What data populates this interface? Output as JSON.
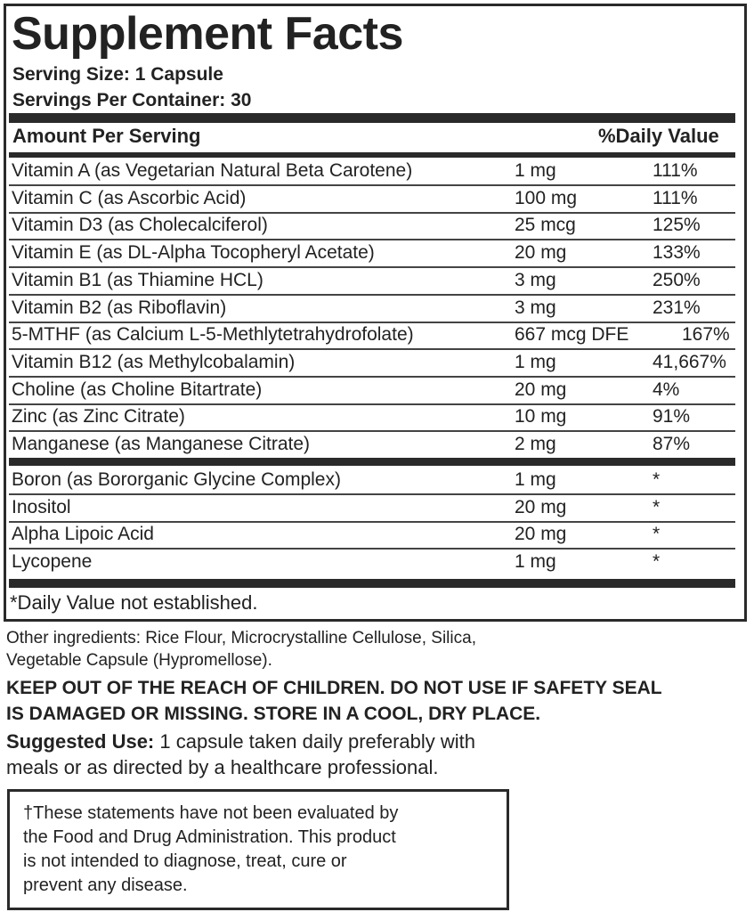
{
  "title": "Supplement Facts",
  "serving_size": "Serving Size: 1 Capsule",
  "servings_per_container": "Servings Per Container: 30",
  "header": {
    "amount": "Amount Per Serving",
    "dv": "%Daily Value"
  },
  "rows": [
    {
      "name": "Vitamin A (as Vegetarian Natural Beta Carotene)",
      "amount": "1 mg",
      "dv": "111%"
    },
    {
      "name": "Vitamin C (as Ascorbic Acid)",
      "amount": "100 mg",
      "dv": "111%"
    },
    {
      "name": "Vitamin D3 (as Cholecalciferol)",
      "amount": "25 mcg",
      "dv": "125%"
    },
    {
      "name": "Vitamin E (as DL-Alpha Tocopheryl Acetate)",
      "amount": "20 mg",
      "dv": "133%"
    },
    {
      "name": "Vitamin B1 (as Thiamine HCL)",
      "amount": "3 mg",
      "dv": "250%"
    },
    {
      "name": "Vitamin B2 (as Riboflavin)",
      "amount": "3 mg",
      "dv": "231%"
    },
    {
      "name": "5-MTHF (as Calcium L-5-Methlytetrahydrofolate)",
      "amount": "667 mcg DFE",
      "dv": "167%"
    },
    {
      "name": "Vitamin B12 (as Methylcobalamin)",
      "amount": "1 mg",
      "dv": "41,667%"
    },
    {
      "name": "Choline (as Choline Bitartrate)",
      "amount": "20 mg",
      "dv": "4%"
    },
    {
      "name": "Zinc (as Zinc Citrate)",
      "amount": "10 mg",
      "dv": "91%"
    },
    {
      "name": "Manganese (as Manganese Citrate)",
      "amount": "2 mg",
      "dv": "87%"
    }
  ],
  "rows2": [
    {
      "name": "Boron (as Bororganic Glycine Complex)",
      "amount": "1 mg",
      "dv": "*"
    },
    {
      "name": "Inositol",
      "amount": "20 mg",
      "dv": "*"
    },
    {
      "name": "Alpha Lipoic Acid",
      "amount": "20 mg",
      "dv": "*"
    },
    {
      "name": "Lycopene",
      "amount": "1 mg",
      "dv": "*"
    }
  ],
  "footnote": "*Daily Value not established.",
  "other_ingredients": [
    "Other ingredients: Rice Flour, Microcrystalline Cellulose, Silica,",
    "Vegetable Capsule (Hypromellose)."
  ],
  "warning": [
    "KEEP OUT OF THE REACH OF CHILDREN. DO NOT USE IF SAFETY SEAL",
    "IS DAMAGED OR MISSING. STORE IN A COOL, DRY PLACE."
  ],
  "suggested_use": {
    "label": "Suggested Use:",
    "lines": [
      " 1 capsule taken daily preferably with",
      "meals or as directed by a healthcare professional."
    ]
  },
  "disclaimer": [
    "†These statements have not been evaluated by",
    "the Food and Drug Administration. This product",
    "is not intended to diagnose, treat, cure or",
    "prevent any disease."
  ]
}
